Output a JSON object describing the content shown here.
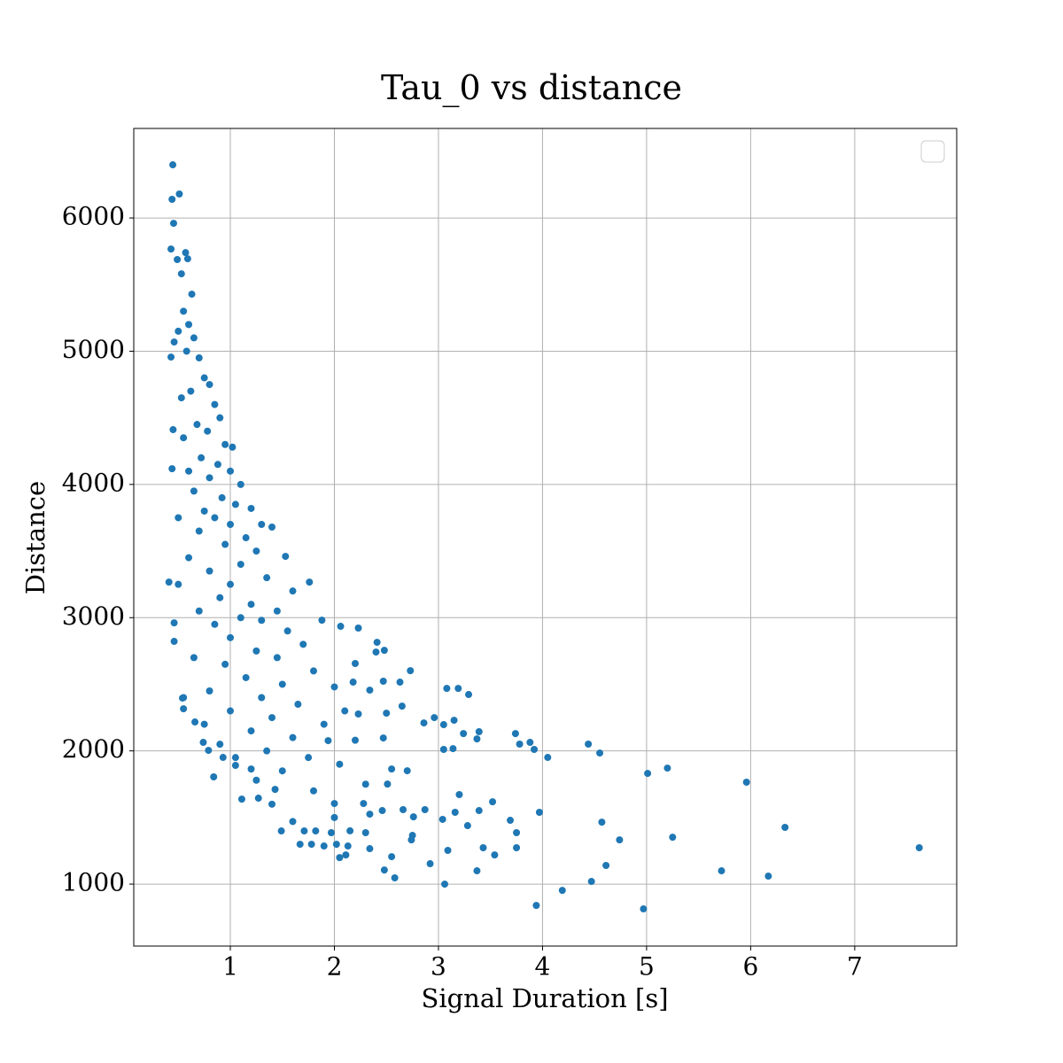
{
  "chart_data": {
    "type": "scatter",
    "title": "Tau_0 vs distance",
    "xlabel": "Signal Duration [s]",
    "ylabel": "Distance",
    "color": "#1f77b4",
    "grid": true,
    "xlim": [
      0.072,
      7.98
    ],
    "ylim": [
      535,
      6672
    ],
    "xticks": [
      1,
      2,
      3,
      4,
      5,
      6,
      7
    ],
    "yticks": [
      1000,
      2000,
      3000,
      4000,
      5000,
      6000
    ],
    "x": [
      0.447,
      0.44,
      0.51,
      0.455,
      0.43,
      0.57,
      0.59,
      0.49,
      0.53,
      0.63,
      7.62,
      6.33,
      5.96,
      6.17,
      5.72,
      5.25,
      5.2,
      5.01,
      4.97,
      4.74,
      4.61,
      4.57,
      4.55,
      4.44,
      4.47,
      4.19,
      4.05,
      3.97,
      3.94,
      3.92,
      3.88,
      3.78,
      3.74,
      3.75,
      3.75,
      3.69,
      3.54,
      3.52,
      3.43,
      3.39,
      3.39,
      3.37,
      3.37,
      3.28,
      3.29,
      3.24,
      3.19,
      3.2,
      3.16,
      3.15,
      3.14,
      3.08,
      3.09,
      3.06,
      3.05,
      3.04,
      3.05,
      2.96,
      2.92,
      2.87,
      2.86,
      2.76,
      2.75,
      2.73,
      2.74,
      2.7,
      2.66,
      2.65,
      2.63,
      2.58,
      2.55,
      2.55,
      2.51,
      2.5,
      2.48,
      2.47,
      2.46,
      2.47,
      2.48,
      2.41,
      2.4,
      2.34,
      2.34,
      2.34,
      2.3,
      2.28,
      2.23,
      2.23,
      2.2,
      2.18,
      2.13,
      2.11,
      2.06,
      2.05,
      2.02,
      2.0,
      1.97,
      1.94,
      1.88,
      1.9,
      1.82,
      1.76,
      1.78,
      1.71,
      1.67,
      1.53,
      1.49,
      1.43,
      1.27,
      1.2,
      1.11,
      1.05,
      0.93,
      0.84,
      0.74,
      0.79,
      0.66,
      0.55,
      0.54,
      0.46,
      0.46,
      0.41,
      0.44,
      0.45,
      0.46,
      0.43,
      0.55,
      0.6,
      0.65,
      0.5,
      0.58,
      0.7,
      0.75,
      0.8,
      0.62,
      0.53,
      0.85,
      0.9,
      0.68,
      0.78,
      0.55,
      0.95,
      1.02,
      0.72,
      0.88,
      0.6,
      1.0,
      0.8,
      1.1,
      0.65,
      0.92,
      1.05,
      0.75,
      1.2,
      0.5,
      0.85,
      1.0,
      1.3,
      1.4,
      0.7,
      1.15,
      0.95,
      1.25,
      0.6,
      1.1,
      0.8,
      1.35,
      0.5,
      1.0,
      1.6,
      0.9,
      1.2,
      1.45,
      0.7,
      1.1,
      1.3,
      0.85,
      1.55,
      1.0,
      1.7,
      0.65,
      1.25,
      1.45,
      0.95,
      1.8,
      1.15,
      1.5,
      0.8,
      2.0,
      1.3,
      0.55,
      1.65,
      1.0,
      2.1,
      1.4,
      0.75,
      1.9,
      1.2,
      1.6,
      2.2,
      0.9,
      1.35,
      1.75,
      1.05,
      2.05,
      1.5,
      1.25,
      1.8,
      1.4,
      2.3,
      2.0,
      1.6,
      2.15
    ],
    "values": [
      6399,
      6140,
      6180,
      5960,
      5767,
      5740,
      5694,
      5688,
      5581,
      5428,
      1273,
      1426,
      1765,
      1060,
      1100,
      1352,
      1871,
      1831,
      814,
      1332,
      1140,
      1465,
      1984,
      2051,
      1020,
      953,
      1951,
      1539,
      840,
      2011,
      2064,
      2051,
      2130,
      1273,
      1386,
      1479,
      1219,
      1618,
      1273,
      1552,
      2144,
      1100,
      2090,
      1439,
      2423,
      2130,
      2469,
      1672,
      1539,
      2230,
      2017,
      2469,
      1253,
      1000,
      2011,
      1486,
      2197,
      2250,
      1153,
      1559,
      2210,
      1505,
      1366,
      2602,
      1332,
      1851,
      1559,
      2336,
      2516,
      1047,
      1206,
      1864,
      1751,
      2283,
      1106,
      2097,
      1552,
      2523,
      2755,
      2815,
      2742,
      2456,
      1525,
      1266,
      1386,
      1605,
      2922,
      2277,
      2656,
      2516,
      1286,
      1219,
      2935,
      1199,
      1299,
      1605,
      1386,
      2077,
      2981,
      1286,
      1399,
      3267,
      1299,
      1399,
      1299,
      3460,
      1399,
      1711,
      1645,
      1864,
      1638,
      1891,
      1951,
      1805,
      2064,
      2004,
      2217,
      2316,
      2396,
      2822,
      2961,
      3267,
      4118,
      4411,
      5069,
      4956,
      5300,
      5200,
      5100,
      5150,
      5000,
      4950,
      4800,
      4750,
      4700,
      4650,
      4600,
      4500,
      4450,
      4400,
      4350,
      4300,
      4280,
      4200,
      4150,
      4100,
      4100,
      4050,
      4000,
      3950,
      3900,
      3850,
      3800,
      3820,
      3750,
      3750,
      3700,
      3700,
      3680,
      3650,
      3600,
      3550,
      3500,
      3450,
      3400,
      3350,
      3300,
      3250,
      3250,
      3200,
      3150,
      3100,
      3050,
      3050,
      3000,
      2980,
      2950,
      2900,
      2850,
      2800,
      2700,
      2750,
      2700,
      2650,
      2600,
      2550,
      2500,
      2450,
      2480,
      2400,
      2400,
      2350,
      2300,
      2300,
      2250,
      2200,
      2200,
      2150,
      2100,
      2080,
      2050,
      2000,
      1950,
      1950,
      1900,
      1850,
      1780,
      1700,
      1600,
      1750,
      1500,
      1470,
      1400
    ]
  }
}
